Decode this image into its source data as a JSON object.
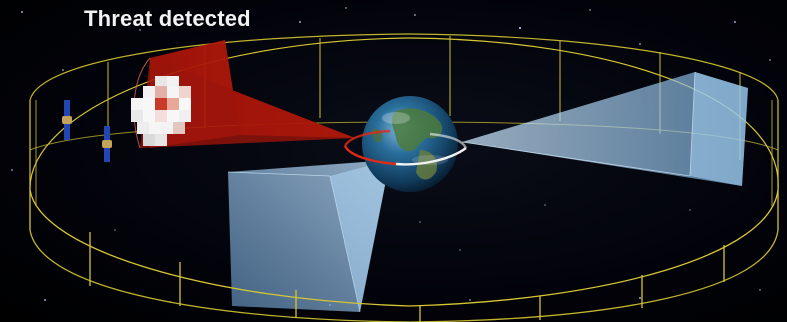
{
  "caption": {
    "text": "Threat detected"
  },
  "scene": {
    "objects": [
      "earth",
      "orbit-ring",
      "threat-cone",
      "sensor-cone-right",
      "sensor-cone-lower",
      "satellite",
      "satellite"
    ],
    "colors": {
      "ring": "#d6c632",
      "threat": "#c3180a",
      "sensor": "#9fd2f5",
      "ocean": "#1b5b86",
      "land": "#3f6b3a"
    }
  }
}
